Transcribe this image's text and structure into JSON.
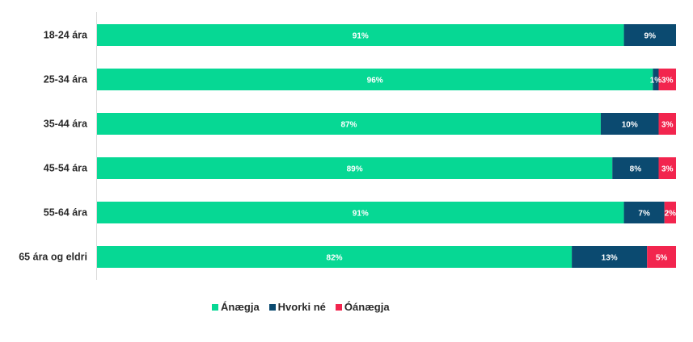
{
  "chart_data": {
    "type": "bar",
    "orientation": "horizontal",
    "stacked": true,
    "categories": [
      "18-24 ára",
      "25-34 ára",
      "35-44 ára",
      "45-54 ára",
      "55-64 ára",
      "65 ára og eldri"
    ],
    "series": [
      {
        "name": "Ánægja",
        "color": "#06d894",
        "values": [
          91,
          96,
          87,
          89,
          91,
          82
        ]
      },
      {
        "name": "Hvorki né",
        "color": "#0b4a70",
        "values": [
          9,
          1,
          10,
          8,
          7,
          13
        ]
      },
      {
        "name": "Óánægja",
        "color": "#f2254e",
        "values": [
          0,
          3,
          3,
          3,
          2,
          5
        ]
      }
    ],
    "xlim": [
      0,
      100
    ],
    "grid": false,
    "legend": "bottom",
    "value_suffix": "%"
  }
}
